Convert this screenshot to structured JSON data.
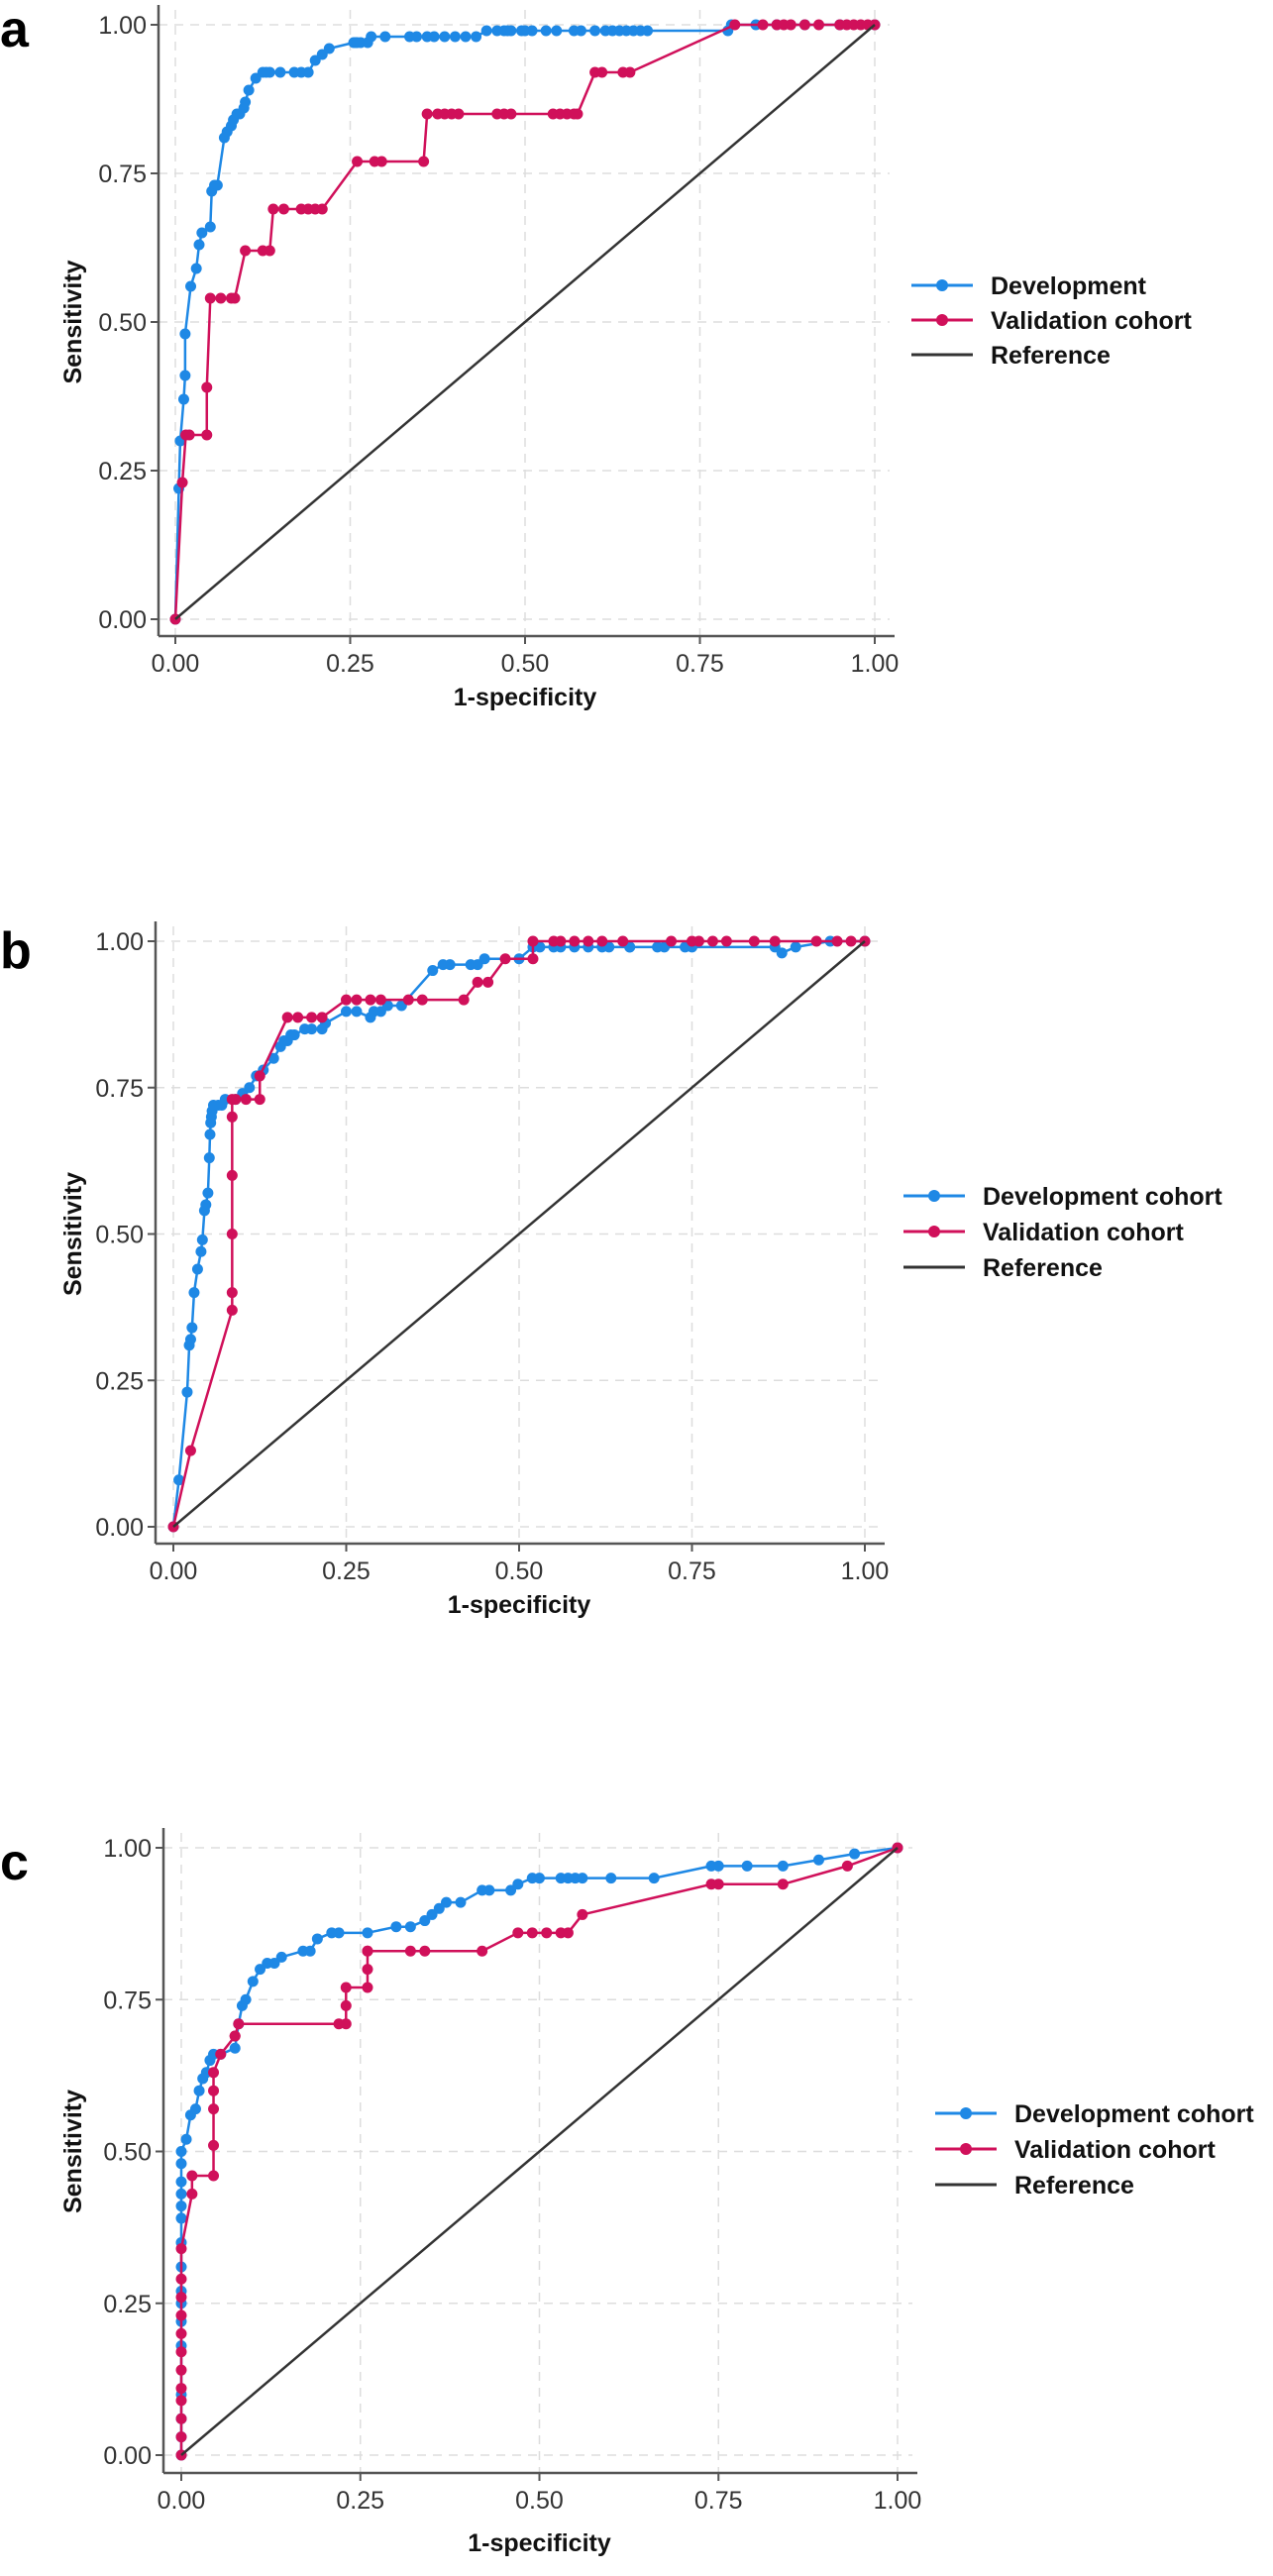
{
  "colors": {
    "development": "#1E88E5",
    "validation": "#D0105A",
    "reference": "#333333",
    "grid": "#dddddd",
    "axis": "#555555"
  },
  "chart_data": [
    {
      "panel": "a",
      "type": "line",
      "title": "",
      "xlabel": "1-specificity",
      "ylabel": "Sensitivity",
      "xlim": [
        0,
        1
      ],
      "ylim": [
        0,
        1
      ],
      "xticks": [
        "0.00",
        "0.25",
        "0.50",
        "0.75",
        "1.00"
      ],
      "yticks": [
        "0.00",
        "0.25",
        "0.50",
        "0.75",
        "1.00"
      ],
      "grid": true,
      "legend_position": "right",
      "series": [
        {
          "name": "Development",
          "key": "development",
          "markers": true,
          "x": [
            0,
            0.005,
            0.007,
            0.012,
            0.014,
            0.014,
            0.022,
            0.03,
            0.034,
            0.038,
            0.05,
            0.052,
            0.056,
            0.06,
            0.07,
            0.074,
            0.08,
            0.083,
            0.088,
            0.092,
            0.098,
            0.1,
            0.105,
            0.115,
            0.125,
            0.13,
            0.135,
            0.15,
            0.17,
            0.18,
            0.19,
            0.2,
            0.21,
            0.22,
            0.255,
            0.258,
            0.26,
            0.265,
            0.275,
            0.28,
            0.3,
            0.335,
            0.345,
            0.36,
            0.37,
            0.385,
            0.4,
            0.415,
            0.43,
            0.445,
            0.46,
            0.47,
            0.475,
            0.48,
            0.495,
            0.5,
            0.51,
            0.53,
            0.545,
            0.57,
            0.58,
            0.6,
            0.615,
            0.625,
            0.635,
            0.645,
            0.655,
            0.665,
            0.675,
            0.79,
            0.795,
            0.83,
            0.86,
            0.9,
            0.95,
            1.0
          ],
          "y": [
            0,
            0.22,
            0.3,
            0.37,
            0.41,
            0.48,
            0.56,
            0.59,
            0.63,
            0.65,
            0.66,
            0.72,
            0.73,
            0.73,
            0.81,
            0.82,
            0.83,
            0.84,
            0.85,
            0.85,
            0.86,
            0.87,
            0.89,
            0.91,
            0.92,
            0.92,
            0.92,
            0.92,
            0.92,
            0.92,
            0.92,
            0.94,
            0.95,
            0.96,
            0.97,
            0.97,
            0.97,
            0.97,
            0.97,
            0.98,
            0.98,
            0.98,
            0.98,
            0.98,
            0.98,
            0.98,
            0.98,
            0.98,
            0.98,
            0.99,
            0.99,
            0.99,
            0.99,
            0.99,
            0.99,
            0.99,
            0.99,
            0.99,
            0.99,
            0.99,
            0.99,
            0.99,
            0.99,
            0.99,
            0.99,
            0.99,
            0.99,
            0.99,
            0.99,
            0.99,
            1.0,
            1.0,
            1.0,
            1.0,
            1.0,
            1.0
          ]
        },
        {
          "name": "Validation cohort",
          "key": "validation",
          "markers": true,
          "x": [
            0,
            0.01,
            0.015,
            0.02,
            0.045,
            0.045,
            0.05,
            0.065,
            0.08,
            0.085,
            0.1,
            0.125,
            0.135,
            0.14,
            0.155,
            0.18,
            0.19,
            0.2,
            0.21,
            0.26,
            0.285,
            0.295,
            0.355,
            0.36,
            0.375,
            0.385,
            0.395,
            0.405,
            0.46,
            0.47,
            0.48,
            0.54,
            0.55,
            0.56,
            0.57,
            0.575,
            0.6,
            0.61,
            0.64,
            0.65,
            0.8,
            0.84,
            0.86,
            0.87,
            0.88,
            0.9,
            0.92,
            0.95,
            0.96,
            0.97,
            0.98,
            0.99,
            1.0
          ],
          "y": [
            0,
            0.23,
            0.31,
            0.31,
            0.31,
            0.39,
            0.54,
            0.54,
            0.54,
            0.54,
            0.62,
            0.62,
            0.62,
            0.69,
            0.69,
            0.69,
            0.69,
            0.69,
            0.69,
            0.77,
            0.77,
            0.77,
            0.77,
            0.85,
            0.85,
            0.85,
            0.85,
            0.85,
            0.85,
            0.85,
            0.85,
            0.85,
            0.85,
            0.85,
            0.85,
            0.85,
            0.92,
            0.92,
            0.92,
            0.92,
            1.0,
            1.0,
            1.0,
            1.0,
            1.0,
            1.0,
            1.0,
            1.0,
            1.0,
            1.0,
            1.0,
            1.0,
            1.0
          ]
        },
        {
          "name": "Reference",
          "key": "reference",
          "markers": false,
          "x": [
            0,
            1
          ],
          "y": [
            0,
            1
          ]
        }
      ]
    },
    {
      "panel": "b",
      "type": "line",
      "title": "",
      "xlabel": "1-specificity",
      "ylabel": "Sensitivity",
      "xlim": [
        0,
        1
      ],
      "ylim": [
        0,
        1
      ],
      "xticks": [
        "0.00",
        "0.25",
        "0.50",
        "0.75",
        "1.00"
      ],
      "yticks": [
        "0.00",
        "0.25",
        "0.50",
        "0.75",
        "1.00"
      ],
      "grid": true,
      "legend_position": "right",
      "series": [
        {
          "name": "Development cohort",
          "key": "development",
          "markers": true,
          "x": [
            0,
            0.008,
            0.02,
            0.023,
            0.025,
            0.027,
            0.03,
            0.035,
            0.04,
            0.042,
            0.045,
            0.047,
            0.05,
            0.052,
            0.053,
            0.054,
            0.055,
            0.056,
            0.058,
            0.065,
            0.07,
            0.075,
            0.09,
            0.1,
            0.11,
            0.12,
            0.13,
            0.145,
            0.155,
            0.16,
            0.165,
            0.17,
            0.175,
            0.19,
            0.2,
            0.215,
            0.22,
            0.25,
            0.265,
            0.285,
            0.29,
            0.3,
            0.31,
            0.33,
            0.375,
            0.39,
            0.4,
            0.43,
            0.44,
            0.45,
            0.5,
            0.52,
            0.53,
            0.55,
            0.56,
            0.58,
            0.6,
            0.62,
            0.63,
            0.66,
            0.66,
            0.7,
            0.71,
            0.74,
            0.75,
            0.87,
            0.88,
            0.9,
            0.95,
            1.0
          ],
          "y": [
            0,
            0.08,
            0.23,
            0.31,
            0.32,
            0.34,
            0.4,
            0.44,
            0.47,
            0.49,
            0.54,
            0.55,
            0.57,
            0.63,
            0.67,
            0.69,
            0.7,
            0.71,
            0.72,
            0.72,
            0.72,
            0.73,
            0.73,
            0.74,
            0.75,
            0.77,
            0.78,
            0.8,
            0.82,
            0.83,
            0.83,
            0.84,
            0.84,
            0.85,
            0.85,
            0.85,
            0.86,
            0.88,
            0.88,
            0.87,
            0.88,
            0.88,
            0.89,
            0.89,
            0.95,
            0.96,
            0.96,
            0.96,
            0.96,
            0.97,
            0.97,
            0.99,
            0.99,
            0.99,
            0.99,
            0.99,
            0.99,
            0.99,
            0.99,
            0.99,
            0.99,
            0.99,
            0.99,
            0.99,
            0.99,
            0.99,
            0.98,
            0.99,
            1.0,
            1.0
          ]
        },
        {
          "name": "Validation cohort",
          "key": "validation",
          "markers": true,
          "x": [
            0,
            0.025,
            0.085,
            0.085,
            0.085,
            0.085,
            0.085,
            0.085,
            0.09,
            0.105,
            0.125,
            0.125,
            0.165,
            0.18,
            0.2,
            0.215,
            0.25,
            0.265,
            0.285,
            0.3,
            0.34,
            0.36,
            0.42,
            0.44,
            0.455,
            0.48,
            0.52,
            0.52,
            0.55,
            0.56,
            0.58,
            0.6,
            0.62,
            0.65,
            0.72,
            0.75,
            0.76,
            0.78,
            0.8,
            0.84,
            0.87,
            0.93,
            0.96,
            0.98,
            1.0
          ],
          "y": [
            0,
            0.13,
            0.37,
            0.4,
            0.5,
            0.6,
            0.7,
            0.73,
            0.73,
            0.73,
            0.73,
            0.77,
            0.87,
            0.87,
            0.87,
            0.87,
            0.9,
            0.9,
            0.9,
            0.9,
            0.9,
            0.9,
            0.9,
            0.93,
            0.93,
            0.97,
            0.97,
            1.0,
            1.0,
            1.0,
            1.0,
            1.0,
            1.0,
            1.0,
            1.0,
            1.0,
            1.0,
            1.0,
            1.0,
            1.0,
            1.0,
            1.0,
            1.0,
            1.0,
            1.0
          ]
        },
        {
          "name": "Reference",
          "key": "reference",
          "markers": false,
          "x": [
            0,
            1
          ],
          "y": [
            0,
            1
          ]
        }
      ]
    },
    {
      "panel": "c",
      "type": "line",
      "title": "",
      "xlabel": "1-specificity",
      "ylabel": "Sensitivity",
      "xlim": [
        0,
        1
      ],
      "ylim": [
        0,
        1
      ],
      "xticks": [
        "0.00",
        "0.25",
        "0.50",
        "0.75",
        "1.00"
      ],
      "yticks": [
        "0.00",
        "0.25",
        "0.50",
        "0.75",
        "1.00"
      ],
      "grid": true,
      "legend_position": "right",
      "series": [
        {
          "name": "Development cohort",
          "key": "development",
          "markers": true,
          "x": [
            0,
            0.0,
            0.0,
            0.0,
            0.0,
            0.0,
            0.0,
            0.0,
            0.0,
            0.0,
            0.0,
            0.0,
            0.0,
            0.0,
            0.0,
            0.0,
            0.007,
            0.013,
            0.02,
            0.025,
            0.03,
            0.035,
            0.04,
            0.045,
            0.055,
            0.075,
            0.08,
            0.085,
            0.09,
            0.1,
            0.11,
            0.12,
            0.13,
            0.14,
            0.17,
            0.18,
            0.19,
            0.21,
            0.22,
            0.26,
            0.3,
            0.32,
            0.34,
            0.35,
            0.36,
            0.37,
            0.39,
            0.42,
            0.43,
            0.46,
            0.47,
            0.49,
            0.5,
            0.53,
            0.54,
            0.55,
            0.56,
            0.6,
            0.66,
            0.74,
            0.75,
            0.79,
            0.84,
            0.89,
            0.94,
            1.0
          ],
          "y": [
            0,
            0.03,
            0.06,
            0.1,
            0.18,
            0.22,
            0.25,
            0.27,
            0.31,
            0.35,
            0.39,
            0.41,
            0.43,
            0.45,
            0.48,
            0.5,
            0.52,
            0.56,
            0.57,
            0.6,
            0.62,
            0.63,
            0.65,
            0.66,
            0.66,
            0.67,
            0.71,
            0.74,
            0.75,
            0.78,
            0.8,
            0.81,
            0.81,
            0.82,
            0.83,
            0.83,
            0.85,
            0.86,
            0.86,
            0.86,
            0.87,
            0.87,
            0.88,
            0.89,
            0.9,
            0.91,
            0.91,
            0.93,
            0.93,
            0.93,
            0.94,
            0.95,
            0.95,
            0.95,
            0.95,
            0.95,
            0.95,
            0.95,
            0.95,
            0.97,
            0.97,
            0.97,
            0.97,
            0.98,
            0.99,
            1.0
          ]
        },
        {
          "name": "Validation cohort",
          "key": "validation",
          "markers": true,
          "x": [
            0,
            0.0,
            0.0,
            0.0,
            0.0,
            0.0,
            0.0,
            0.0,
            0.0,
            0.0,
            0.0,
            0.0,
            0.015,
            0.015,
            0.045,
            0.045,
            0.045,
            0.045,
            0.045,
            0.055,
            0.075,
            0.075,
            0.08,
            0.22,
            0.23,
            0.23,
            0.23,
            0.26,
            0.26,
            0.26,
            0.26,
            0.32,
            0.34,
            0.42,
            0.47,
            0.49,
            0.51,
            0.53,
            0.54,
            0.56,
            0.74,
            0.75,
            0.84,
            0.93,
            1.0
          ],
          "y": [
            0,
            0.03,
            0.06,
            0.09,
            0.11,
            0.14,
            0.17,
            0.2,
            0.23,
            0.26,
            0.29,
            0.34,
            0.43,
            0.46,
            0.46,
            0.51,
            0.57,
            0.6,
            0.63,
            0.66,
            0.69,
            0.69,
            0.71,
            0.71,
            0.71,
            0.74,
            0.77,
            0.77,
            0.8,
            0.83,
            0.83,
            0.83,
            0.83,
            0.83,
            0.86,
            0.86,
            0.86,
            0.86,
            0.86,
            0.89,
            0.94,
            0.94,
            0.94,
            0.97,
            1.0
          ]
        },
        {
          "name": "Reference",
          "key": "reference",
          "markers": false,
          "x": [
            0,
            1
          ],
          "y": [
            0,
            1
          ]
        }
      ]
    }
  ]
}
